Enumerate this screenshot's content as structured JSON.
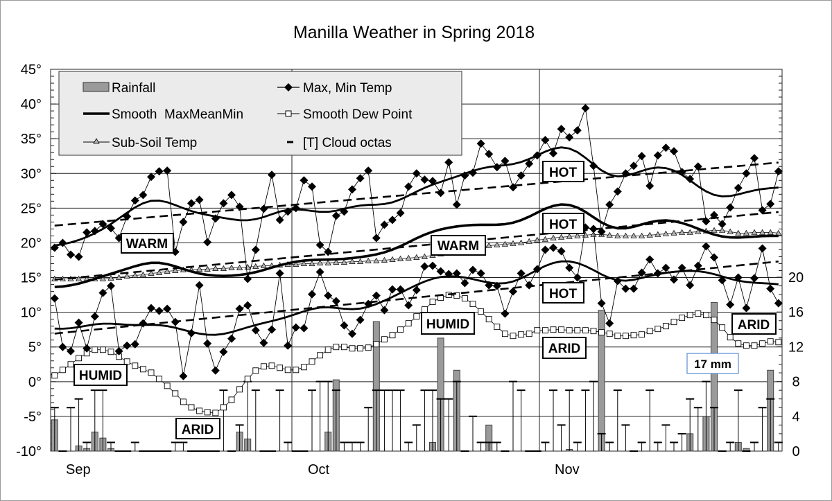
{
  "chart_data": {
    "type": "line",
    "title": "Manilla Weather in Spring 2018",
    "x_month_labels": [
      "Sep",
      "Oct",
      "Nov"
    ],
    "x_range": [
      "2018-09-01",
      "2018-11-30"
    ],
    "left_axis": {
      "ylim": [
        -10,
        45
      ],
      "tick_labels": [
        "-10°",
        "-5°",
        "0°",
        "5°",
        "10°",
        "15°",
        "20°",
        "25°",
        "30°",
        "35°",
        "40°",
        "45°"
      ]
    },
    "right_axis": {
      "ylim": [
        0,
        20
      ],
      "tick_labels": [
        "0",
        "4",
        "8",
        "12",
        "16",
        "20"
      ]
    },
    "grid": true,
    "legend": {
      "placement": "top-left",
      "items": [
        "Rainfall",
        "Max, Min Temp",
        "Smooth  MaxMeanMin",
        "Smooth Dew Point",
        "Sub-Soil Temp",
        "[T] Cloud octas"
      ]
    },
    "series": [
      {
        "name": "Max, Min Temp",
        "key": "max",
        "axis": "left",
        "values": [
          19.3,
          20.0,
          18.3,
          18.0,
          21.5,
          21.7,
          22.7,
          22.1,
          20.7,
          23.8,
          26.1,
          26.9,
          29.5,
          30.3,
          30.4,
          18.7,
          23.0,
          25.7,
          26.2,
          20.1,
          23.5,
          25.7,
          26.9,
          25.2,
          14.8,
          19.0,
          24.9,
          29.8,
          23.3,
          24.5,
          25.0,
          29.0,
          28.1,
          19.7,
          18.7,
          23.9,
          24.5,
          27.7,
          29.3,
          30.4,
          20.7,
          22.6,
          23.3,
          24.3,
          28.1,
          30.0,
          29.1,
          28.9,
          27.2,
          31.6,
          25.5,
          29.7,
          30.1,
          34.3,
          32.8,
          30.9,
          31.8,
          28.0,
          29.7,
          31.4,
          32.6,
          34.8,
          32.9,
          36.4,
          35.2,
          36.2,
          39.4,
          31.1,
          21.6,
          25.5,
          27.4,
          30.0,
          31.1,
          32.5,
          28.2,
          32.6,
          33.7,
          33.2,
          30.2,
          29.2,
          31.0,
          23.1,
          24.0,
          22.7,
          25.1,
          27.9,
          30.0,
          32.2,
          24.7,
          25.6,
          30.3
        ]
      },
      {
        "name": "Max, Min Temp",
        "key": "min",
        "axis": "left",
        "values": [
          12.0,
          5.0,
          4.4,
          8.5,
          4.8,
          9.4,
          12.8,
          13.8,
          4.4,
          5.2,
          5.4,
          8.4,
          10.6,
          10.2,
          10.5,
          8.6,
          0.8,
          7.0,
          13.9,
          5.5,
          1.6,
          4.3,
          6.2,
          10.5,
          11.0,
          7.4,
          5.6,
          7.5,
          15.6,
          5.2,
          7.8,
          7.7,
          12.6,
          15.8,
          12.4,
          11.6,
          8.1,
          6.9,
          8.9,
          11.2,
          12.4,
          10.3,
          13.3,
          13.3,
          11.0,
          13.2,
          16.6,
          16.7,
          15.9,
          15.5,
          15.6,
          14.2,
          16.1,
          15.6,
          13.9,
          13.8,
          9.8,
          13.0,
          15.6,
          13.9,
          16.2,
          19.0,
          19.3,
          18.8,
          16.4,
          15.0,
          22.2,
          22.0,
          11.3,
          8.4,
          14.5,
          13.4,
          13.4,
          15.7,
          17.6,
          15.6,
          16.4,
          14.7,
          16.4,
          13.9,
          16.7,
          19.5,
          17.9,
          14.6,
          11.1,
          15.0,
          10.6,
          14.9,
          19.2,
          13.4,
          11.3
        ]
      },
      {
        "name": "Smooth Dew Point",
        "key": "dew",
        "axis": "left",
        "values": [
          0.9,
          1.7,
          2.5,
          3.4,
          4.1,
          4.6,
          4.6,
          4.3,
          3.6,
          2.9,
          2.3,
          1.8,
          1.3,
          0.4,
          -0.6,
          -1.7,
          -2.9,
          -3.7,
          -4.2,
          -4.4,
          -4.5,
          -3.7,
          -2.6,
          -1.1,
          0.4,
          1.6,
          2.2,
          2.3,
          2.0,
          1.7,
          1.7,
          2.1,
          2.9,
          3.8,
          4.6,
          5.0,
          5.0,
          4.8,
          4.8,
          4.9,
          5.4,
          6.1,
          6.7,
          7.5,
          8.4,
          9.4,
          10.4,
          11.5,
          12.1,
          12.5,
          12.4,
          12.0,
          11.2,
          10.1,
          9.0,
          7.9,
          6.9,
          6.6,
          6.8,
          6.9,
          7.4,
          7.4,
          7.5,
          7.5,
          7.4,
          7.4,
          7.4,
          7.3,
          7.1,
          6.9,
          6.6,
          6.6,
          6.7,
          6.8,
          7.3,
          7.6,
          8.0,
          8.6,
          9.2,
          9.6,
          9.8,
          9.6,
          8.9,
          7.8,
          6.4,
          5.5,
          5.2,
          5.2,
          5.5,
          5.8,
          5.7
        ]
      },
      {
        "name": "Sub-Soil Temp",
        "key": "soil",
        "axis": "left",
        "values": [
          14.8,
          14.8,
          14.8,
          14.8,
          14.8,
          14.8,
          14.8,
          14.9,
          15.0,
          15.2,
          15.3,
          15.4,
          15.6,
          15.7,
          15.9,
          16.0,
          16.1,
          16.1,
          16.2,
          16.2,
          16.3,
          16.3,
          16.4,
          16.4,
          16.5,
          16.6,
          16.7,
          16.7,
          16.8,
          16.9,
          16.9,
          17.0,
          17.0,
          17.1,
          17.1,
          17.2,
          17.2,
          17.3,
          17.3,
          17.4,
          17.4,
          17.5,
          17.6,
          17.7,
          17.8,
          17.9,
          18.0,
          18.2,
          18.4,
          18.6,
          18.8,
          19.0,
          19.2,
          19.4,
          19.6,
          19.7,
          19.8,
          19.9,
          20.0,
          20.2,
          20.4,
          20.5,
          20.7,
          20.8,
          20.9,
          21.0,
          21.1,
          21.2,
          21.2,
          21.1,
          21.0,
          21.0,
          21.0,
          21.0,
          21.1,
          21.2,
          21.3,
          21.4,
          21.5,
          21.5,
          21.6,
          21.7,
          21.8,
          21.8,
          21.6,
          21.4,
          21.4,
          21.5,
          21.5,
          21.5,
          21.4
        ]
      },
      {
        "name": "Rainfall",
        "key": "rain",
        "axis": "right",
        "unit": "mm",
        "values": [
          3.6,
          0,
          0,
          0.6,
          0.3,
          2.2,
          1.5,
          0.3,
          0,
          0,
          0,
          0,
          0,
          0,
          0,
          0,
          0,
          0,
          0,
          0,
          0,
          0,
          0,
          2.2,
          1.4,
          0,
          0,
          0,
          0,
          0,
          0,
          0,
          0,
          0,
          2.2,
          8.2,
          0,
          0,
          0,
          0,
          14.9,
          0,
          0,
          0,
          0,
          0,
          0,
          1,
          13,
          0,
          9.3,
          0,
          0,
          0,
          3,
          0,
          0,
          0,
          0,
          0,
          0,
          0,
          0,
          0,
          0.2,
          0,
          0,
          0,
          16.2,
          0,
          0,
          0,
          0,
          0,
          0,
          0,
          0,
          0,
          0,
          2,
          0,
          4,
          17.1,
          0,
          0,
          1,
          0.3,
          0,
          0,
          9.3,
          0
        ]
      },
      {
        "name": "[T] Cloud octas",
        "key": "cloud",
        "axis": "right",
        "values": [
          5,
          0,
          5,
          6,
          1,
          7,
          7,
          1,
          0,
          0,
          1,
          0,
          0,
          0,
          0,
          1,
          1,
          0,
          0,
          0,
          0,
          7,
          0,
          3,
          8,
          7,
          0,
          0,
          7,
          1,
          0,
          0,
          7,
          8,
          8,
          7,
          1,
          1,
          1,
          5,
          7,
          7,
          7,
          7,
          1,
          3,
          7,
          7,
          6,
          6,
          8,
          0,
          4,
          1,
          1,
          1,
          0,
          8,
          7,
          0,
          0,
          1,
          7,
          3,
          7,
          1,
          7,
          8,
          2,
          1,
          7,
          3,
          0,
          1,
          7,
          1,
          3,
          1,
          2,
          6,
          5,
          8,
          5,
          0,
          1,
          7,
          0,
          1,
          5,
          6,
          1
        ]
      }
    ],
    "annotations": [
      "WARM",
      "WARM",
      "HOT",
      "HOT",
      "HOT",
      "HUMID",
      "HUMID",
      "ARID",
      "ARID",
      "ARID",
      "17 mm"
    ]
  },
  "colors": {
    "rain": "#9a9a9a",
    "legend_bg": "#ebebeb",
    "soil_marker": "#b0b0b0",
    "callout_border": "#5b8bd0"
  }
}
